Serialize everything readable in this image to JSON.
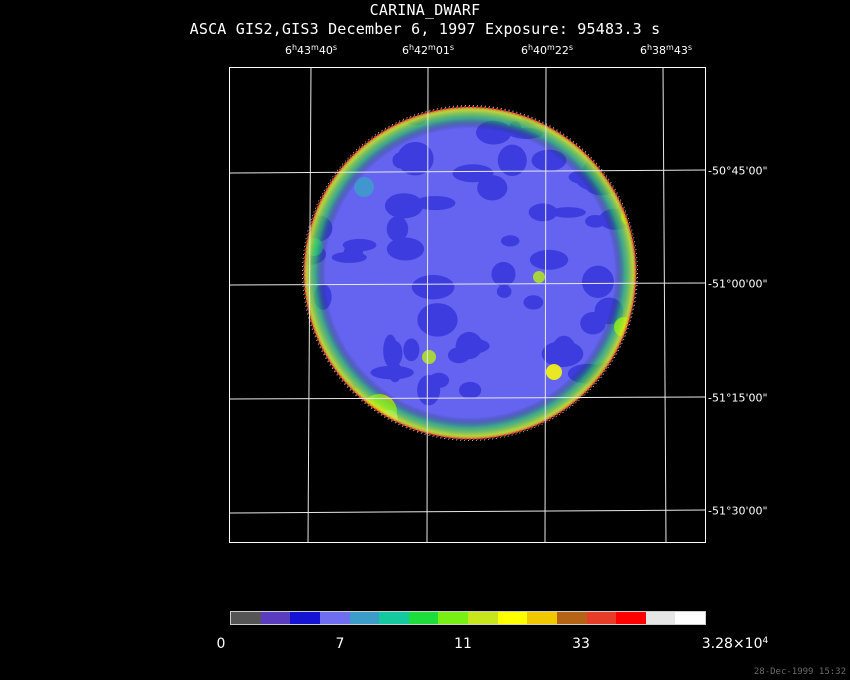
{
  "header": {
    "title": "CARINA_DWARF",
    "subtitle": "ASCA GIS2,GIS3 December 6, 1997 Exposure: 95483.3 s"
  },
  "ra_ticks": [
    {
      "h": "6",
      "m": "43",
      "s": "40"
    },
    {
      "h": "6",
      "m": "42",
      "s": "01"
    },
    {
      "h": "6",
      "m": "40",
      "s": "22"
    },
    {
      "h": "6",
      "m": "38",
      "s": "43"
    }
  ],
  "dec_ticks": [
    "-50°45'00\"",
    "-51°00'00\"",
    "-51°15'00\"",
    "-51°30'00\""
  ],
  "colorbar": {
    "colors": [
      "#555555",
      "#5a3cbe",
      "#1414d2",
      "#6e6ef0",
      "#3c9ec8",
      "#14c8a0",
      "#1edc3c",
      "#78f014",
      "#c8e61e",
      "#ffff00",
      "#f0c800",
      "#b46414",
      "#e63c28",
      "#ff0000",
      "#e6e6e6",
      "#ffffff"
    ],
    "labels": [
      "0",
      "7",
      "11",
      "33"
    ],
    "max_label_mantissa": "3.28×10",
    "max_label_exp": "4"
  },
  "image": {
    "palette": {
      "gray": "#555555",
      "blue": "#1e1ed2",
      "lightblue": "#6464f0",
      "teal": "#3c9ec8",
      "green": "#1edc3c",
      "lime": "#b4e61e",
      "yellow": "#ffff00",
      "red": "#e63c28",
      "white": "#ffffff"
    }
  },
  "timestamp": "28-Dec-1999 15:32"
}
